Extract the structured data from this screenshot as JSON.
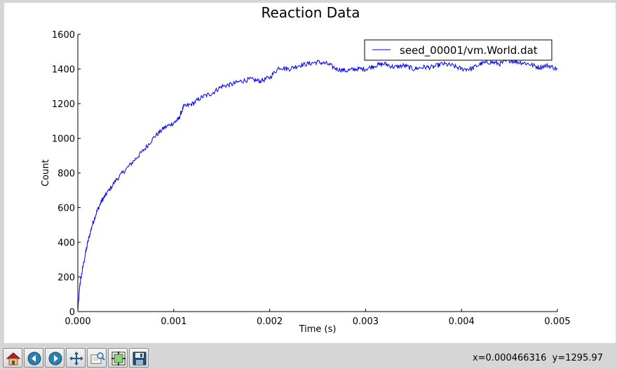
{
  "chart_data": {
    "type": "line",
    "title": "Reaction Data",
    "xlabel": "Time (s)",
    "ylabel": "Count",
    "xlim": [
      0,
      0.005
    ],
    "ylim": [
      0,
      1600
    ],
    "x_ticks": [
      "0.000",
      "0.001",
      "0.002",
      "0.003",
      "0.004",
      "0.005"
    ],
    "y_ticks": [
      "0",
      "200",
      "400",
      "600",
      "800",
      "1000",
      "1200",
      "1400",
      "1600"
    ],
    "legend_position": "top-right",
    "grid": false,
    "series": [
      {
        "name": "seed_00001/vm.World.dat",
        "color": "#0000ff",
        "x": [
          0,
          2e-05,
          5e-05,
          0.0001,
          0.00015,
          0.0002,
          0.00025,
          0.0003,
          0.0004,
          0.0005,
          0.0006,
          0.0007,
          0.0008,
          0.0009,
          0.001,
          0.00105,
          0.0011,
          0.0012,
          0.0013,
          0.0014,
          0.0015,
          0.0016,
          0.0017,
          0.0018,
          0.0019,
          0.002,
          0.0021,
          0.0022,
          0.0023,
          0.0024,
          0.0025,
          0.0026,
          0.0027,
          0.0028,
          0.0029,
          0.003,
          0.0031,
          0.0032,
          0.0033,
          0.0034,
          0.0035,
          0.0036,
          0.0037,
          0.0038,
          0.0039,
          0.004,
          0.0041,
          0.0042,
          0.0043,
          0.0044,
          0.0045,
          0.0046,
          0.0047,
          0.0048,
          0.0049,
          0.005
        ],
        "y": [
          0,
          150,
          250,
          390,
          500,
          580,
          640,
          680,
          760,
          820,
          880,
          940,
          1010,
          1060,
          1090,
          1110,
          1180,
          1200,
          1240,
          1260,
          1300,
          1310,
          1330,
          1340,
          1330,
          1350,
          1410,
          1400,
          1420,
          1430,
          1440,
          1430,
          1400,
          1390,
          1400,
          1400,
          1420,
          1430,
          1410,
          1420,
          1400,
          1410,
          1410,
          1430,
          1420,
          1400,
          1400,
          1430,
          1440,
          1430,
          1450,
          1440,
          1430,
          1410,
          1420,
          1400
        ]
      }
    ]
  },
  "toolbar": {
    "icons": [
      "home-icon",
      "back-icon",
      "forward-icon",
      "pan-icon",
      "zoom-icon",
      "subplots-icon",
      "save-icon"
    ]
  },
  "status": {
    "coordinates": "x=0.000466316  y=1295.97"
  }
}
